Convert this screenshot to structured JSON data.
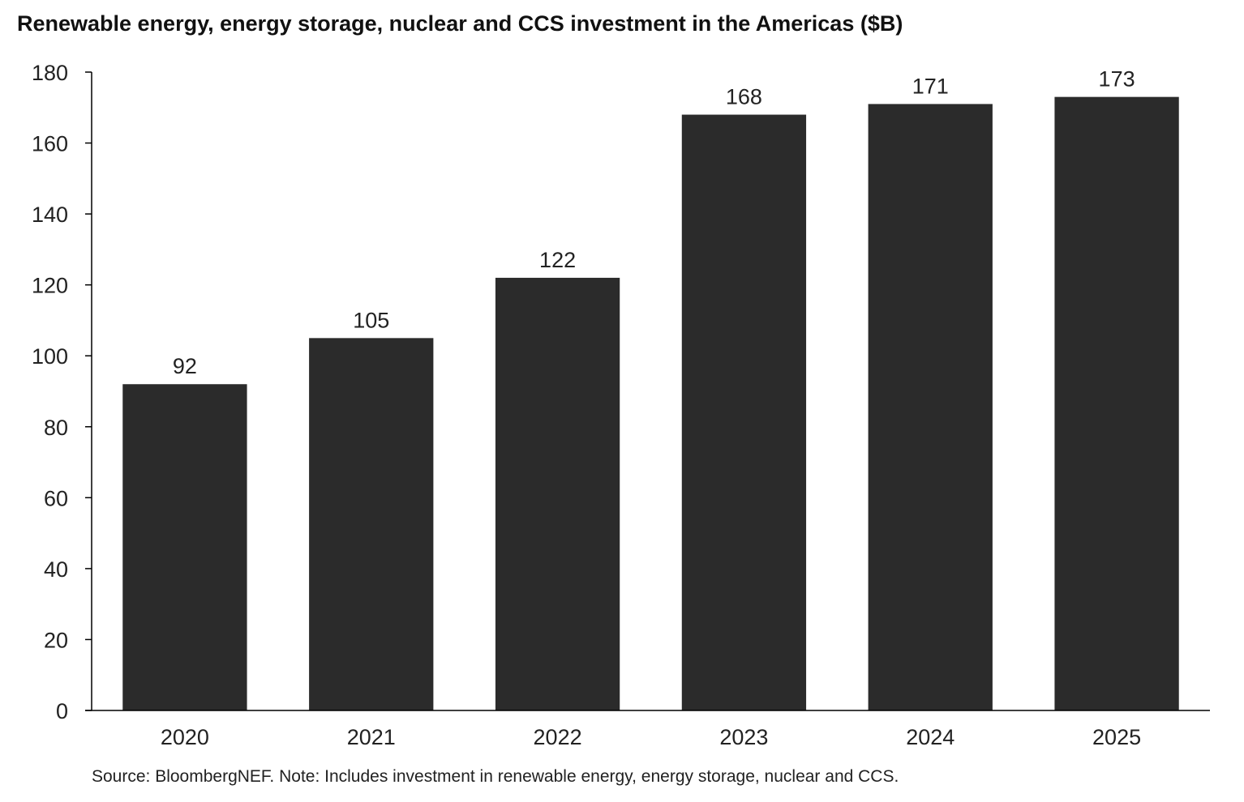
{
  "chart_data": {
    "type": "bar",
    "title": "Renewable energy, energy storage, nuclear and CCS investment in the Americas ($B)",
    "categories": [
      "2020",
      "2021",
      "2022",
      "2023",
      "2024",
      "2025"
    ],
    "values": [
      92,
      105,
      122,
      168,
      171,
      173
    ],
    "data_labels": [
      "92",
      "105",
      "122",
      "168",
      "171",
      "173"
    ],
    "xlabel": "",
    "ylabel": "",
    "ylim": [
      0,
      180
    ],
    "yticks": [
      0,
      20,
      40,
      60,
      80,
      100,
      120,
      140,
      160,
      180
    ],
    "grid": false,
    "bar_color": "#2b2b2b",
    "note": "Source: BloombergNEF. Note: Includes investment in renewable energy, energy storage, nuclear and CCS."
  }
}
